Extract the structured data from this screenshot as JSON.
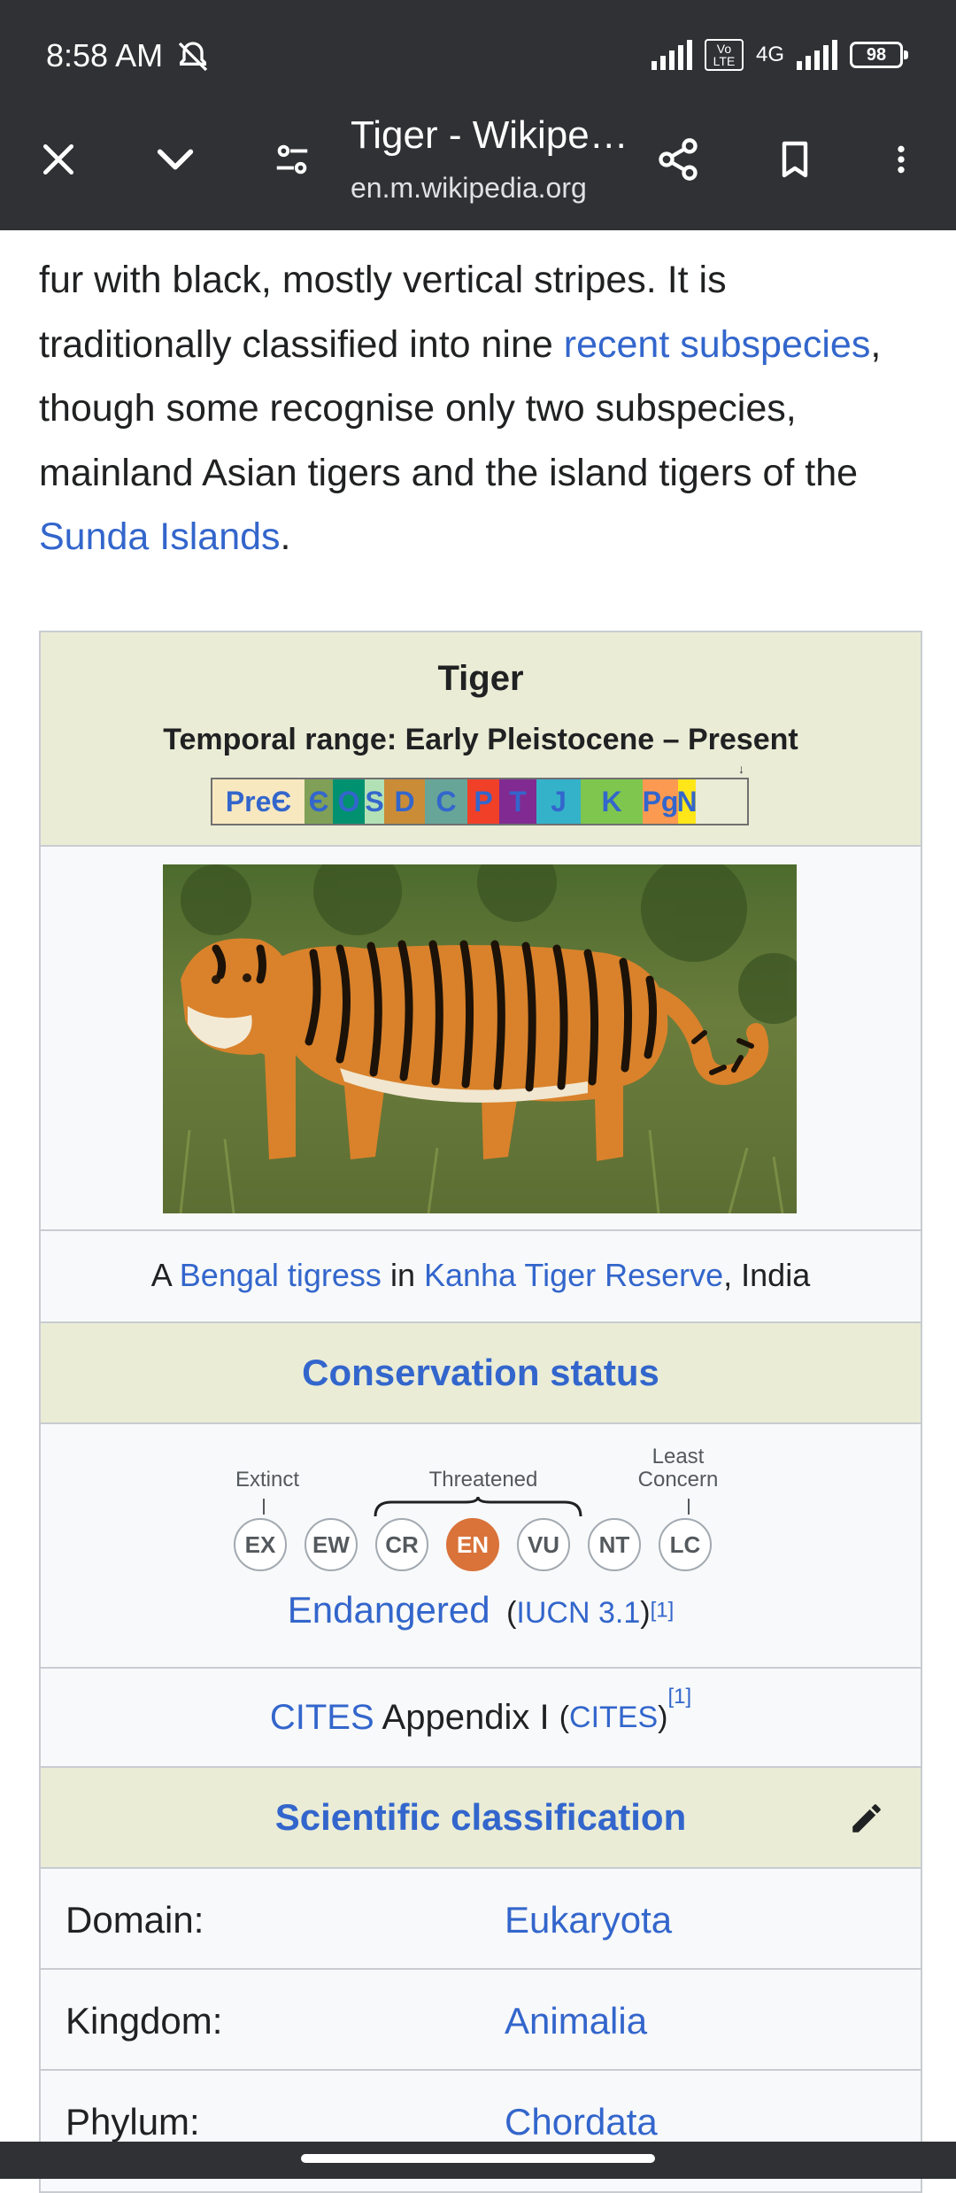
{
  "status_bar": {
    "time": "8:58 AM",
    "network": "4G",
    "volte": "Vo LTE",
    "battery": "98"
  },
  "toolbar": {
    "title": "Tiger - Wikipe…",
    "url": "en.m.wikipedia.org"
  },
  "article": {
    "line1": "fur with black, mostly vertical stripes. It is",
    "line2_pre": "traditionally classified into nine ",
    "line2_link": "recent subspecies",
    "line2_post": ",",
    "line3": "though some recognise only two subspecies,",
    "line4": "mainland Asian tigers and the island tigers of the",
    "line5_link": "Sunda Islands",
    "line5_post": "."
  },
  "infobox": {
    "title": "Tiger",
    "temporal_range": "Temporal range: Early Pleistocene – Present",
    "timescale": [
      {
        "label": "PreЄ",
        "color": "#f8e8c0"
      },
      {
        "label": "Є",
        "color": "#7fa056"
      },
      {
        "label": "O",
        "color": "#009270"
      },
      {
        "label": "S",
        "color": "#b3e1b6"
      },
      {
        "label": "D",
        "color": "#cb8c37"
      },
      {
        "label": "C",
        "color": "#67a599"
      },
      {
        "label": "P",
        "color": "#f04028"
      },
      {
        "label": "T",
        "color": "#812b92"
      },
      {
        "label": "J",
        "color": "#34b2c9"
      },
      {
        "label": "K",
        "color": "#7fc64e"
      },
      {
        "label": "Pg",
        "color": "#fd9a52"
      },
      {
        "label": "N",
        "color": "#ffe619"
      }
    ],
    "caption": {
      "pre": "A ",
      "link1": "Bengal tigress",
      "mid": " in ",
      "link2": "Kanha Tiger Reserve",
      "post": ", India"
    },
    "conservation": {
      "header": "Conservation status",
      "label_extinct": "Extinct",
      "label_threatened": "Threatened",
      "label_least_line1": "Least",
      "label_least_line2": "Concern",
      "codes": [
        "EX",
        "EW",
        "CR",
        "EN",
        "VU",
        "NT",
        "LC"
      ],
      "active": "EN",
      "status": "Endangered",
      "iucn_open": "(",
      "iucn_link": "IUCN 3.1",
      "iucn_close": ")",
      "ref": "[1]"
    },
    "cites": {
      "link": "CITES",
      "text": " Appendix I ",
      "paren_open": "(",
      "link2": "CITES",
      "paren_close": ")",
      "ref": "[1]"
    },
    "classification": {
      "header": "Scientific classification",
      "rows": [
        {
          "label": "Domain:",
          "value": "Eukaryota"
        },
        {
          "label": "Kingdom:",
          "value": "Animalia"
        },
        {
          "label": "Phylum:",
          "value": "Chordata"
        }
      ]
    }
  },
  "colors": {
    "link": "#3366cc",
    "header_bg": "#eaecd6",
    "endangered": "#d9733a",
    "toolbar_bg": "#303134"
  }
}
